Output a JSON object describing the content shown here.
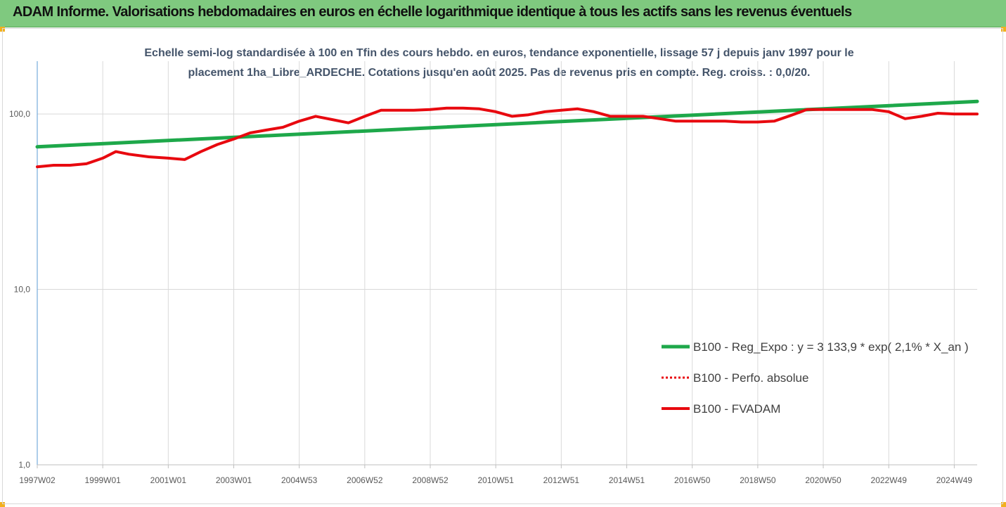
{
  "banner": {
    "title": "ADAM Informe. Valorisations hebdomadaires en euros en échelle logarithmique identique à tous les actifs sans les revenus éventuels"
  },
  "colors": {
    "banner_bg": "#7fc97f",
    "trend": "#1ea84a",
    "fvadam": "#e8090f",
    "perfo": "#e8090f",
    "grid": "#d9d9d9",
    "accent": "#f2b01e"
  },
  "chart_data": {
    "type": "line",
    "title_lines": [
      "Echelle semi-log standardisée à 100 en Tfin des cours hebdo. en euros, tendance exponentielle, lissage 57 j depuis janv 1997 pour le",
      "placement 1ha_Libre_ARDECHE. Cotations jusqu'en août 2025.  Pas de revenus pris en compte. Reg. croiss. : 0,0/20."
    ],
    "y_scale": "log",
    "ylim": [
      1,
      200
    ],
    "y_ticks": [
      {
        "value": 100,
        "label": "100,0"
      },
      {
        "value": 10,
        "label": "10,0"
      },
      {
        "value": 1,
        "label": "1,0"
      }
    ],
    "xlim": [
      1997.0,
      2025.7
    ],
    "x_ticks": [
      {
        "t": 1997.0,
        "label": "1997W02"
      },
      {
        "t": 1999.0,
        "label": "1999W01"
      },
      {
        "t": 2001.0,
        "label": "2001W01"
      },
      {
        "t": 2003.0,
        "label": "2003W01"
      },
      {
        "t": 2005.0,
        "label": "2004W53"
      },
      {
        "t": 2007.0,
        "label": "2006W52"
      },
      {
        "t": 2009.0,
        "label": "2008W52"
      },
      {
        "t": 2011.0,
        "label": "2010W51"
      },
      {
        "t": 2013.0,
        "label": "2012W51"
      },
      {
        "t": 2015.0,
        "label": "2014W51"
      },
      {
        "t": 2017.0,
        "label": "2016W50"
      },
      {
        "t": 2019.0,
        "label": "2018W50"
      },
      {
        "t": 2021.0,
        "label": "2020W50"
      },
      {
        "t": 2023.0,
        "label": "2022W49"
      },
      {
        "t": 2025.0,
        "label": "2024W49"
      }
    ],
    "legend_position": "right",
    "series": [
      {
        "name": "B100 - Reg_Expo : y = 3 133,9 * exp( 2,1% *  X_an )",
        "style": "trend",
        "x": [
          1997.0,
          2025.7
        ],
        "y": [
          65,
          118
        ]
      },
      {
        "name": "B100 - Perfo. absolue",
        "style": "perfo",
        "x": [],
        "y": []
      },
      {
        "name": "B100 - FVADAM",
        "style": "fvadam",
        "x": [
          1997.0,
          1997.5,
          1998.0,
          1998.5,
          1999.0,
          1999.4,
          1999.8,
          2000.4,
          2001.0,
          2001.5,
          2002.0,
          2002.5,
          2003.0,
          2003.5,
          2004.0,
          2004.5,
          2005.0,
          2005.5,
          2006.0,
          2006.5,
          2007.0,
          2007.5,
          2008.0,
          2008.5,
          2009.0,
          2009.5,
          2010.0,
          2010.5,
          2011.0,
          2011.5,
          2012.0,
          2012.5,
          2013.0,
          2013.5,
          2014.0,
          2014.5,
          2015.0,
          2015.5,
          2016.0,
          2016.5,
          2017.0,
          2017.5,
          2018.0,
          2018.5,
          2019.0,
          2019.5,
          2020.0,
          2020.5,
          2021.0,
          2021.5,
          2022.0,
          2022.5,
          2023.0,
          2023.5,
          2024.0,
          2024.5,
          2025.0,
          2025.7
        ],
        "y": [
          50,
          51,
          51,
          52,
          56,
          61,
          59,
          57,
          56,
          55,
          61,
          67,
          72,
          78,
          81,
          84,
          91,
          97,
          93,
          89,
          97,
          105,
          105,
          105,
          106,
          108,
          108,
          107,
          103,
          97,
          99,
          103,
          105,
          107,
          103,
          97,
          97,
          97,
          94,
          91,
          91,
          91,
          91,
          90,
          90,
          91,
          98,
          106,
          106,
          106,
          106,
          106,
          103,
          94,
          97,
          101,
          100,
          100
        ]
      }
    ]
  }
}
